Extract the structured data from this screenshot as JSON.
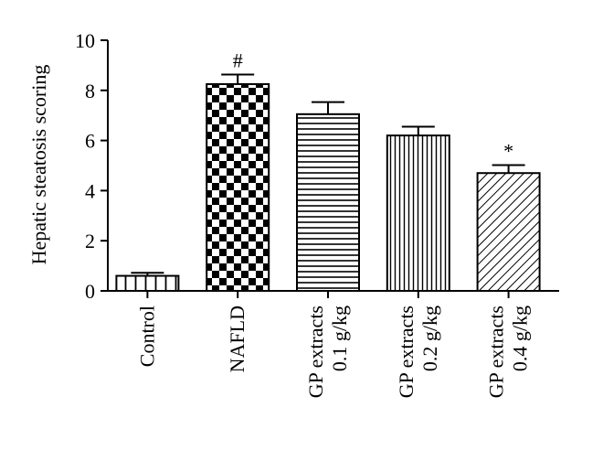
{
  "chart_data": {
    "type": "bar",
    "title": "",
    "xlabel": "",
    "ylabel": "Hepatic steatosis scoring",
    "ylim": [
      0,
      10
    ],
    "yticks": [
      "0",
      "2",
      "4",
      "6",
      "8",
      "10"
    ],
    "grid": false,
    "categories": [
      [
        "Control"
      ],
      [
        "NAFLD"
      ],
      [
        "GP extracts",
        "0.1 g/kg"
      ],
      [
        "GP extracts",
        "0.2 g/kg"
      ],
      [
        "GP extracts",
        "0.4 g/kg"
      ]
    ],
    "values": [
      0.6,
      8.25,
      7.05,
      6.2,
      4.7
    ],
    "errors": [
      0.12,
      0.38,
      0.48,
      0.35,
      0.32
    ],
    "patterns": [
      "vertical-wide",
      "checker",
      "horizontal",
      "vertical-fine",
      "diagonal"
    ],
    "annotations": [
      "",
      "#",
      "",
      "",
      "*"
    ],
    "colors": {
      "stroke": "#000000",
      "fill": "#ffffff"
    }
  }
}
